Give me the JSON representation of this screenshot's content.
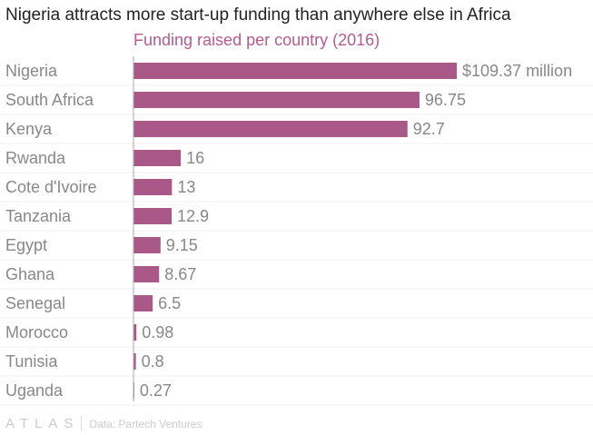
{
  "chart_data": {
    "type": "bar",
    "orientation": "horizontal",
    "title": "Nigeria attracts more start-up funding than anywhere else in Africa",
    "subtitle": "Funding raised per country (2016)",
    "categories": [
      "Nigeria",
      "South Africa",
      "Kenya",
      "Rwanda",
      "Cote d'Ivoire",
      "Tanzania",
      "Egypt",
      "Ghana",
      "Senegal",
      "Morocco",
      "Tunisia",
      "Uganda"
    ],
    "values": [
      109.37,
      96.75,
      92.7,
      16,
      13,
      12.9,
      9.15,
      8.67,
      6.5,
      0.98,
      0.8,
      0.27
    ],
    "data_labels": [
      "$109.37 million",
      "96.75",
      "92.7",
      "16",
      "13",
      "12.9",
      "9.15",
      "8.67",
      "6.5",
      "0.98",
      "0.8",
      "0.27"
    ],
    "xlim": [
      0,
      109.37
    ],
    "bar_color": "#a95887",
    "grid": true
  },
  "footer": {
    "logo": "ATLAS",
    "source": "Data: Partech Ventures"
  }
}
